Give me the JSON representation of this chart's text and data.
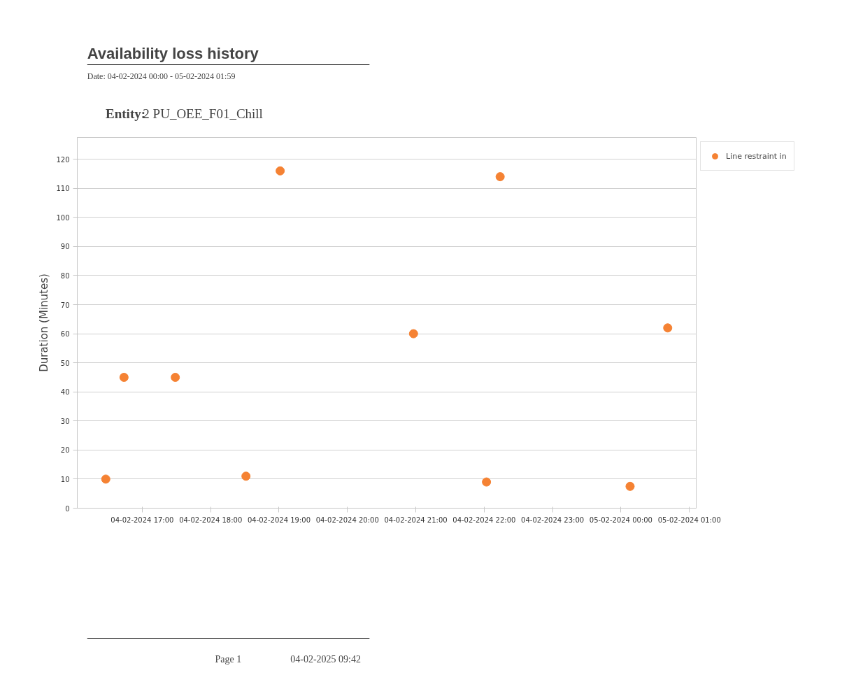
{
  "chart_data": {
    "type": "scatter",
    "title": "Availability loss history",
    "subtitle": "Date: 04-02-2024 00:00 - 05-02-2024 01:59",
    "ylabel": "Duration (Minutes)",
    "annotations": [
      "Entity:",
      "2  PU_OEE_F01_Chill",
      "Page 1",
      "04-02-2025 09:42"
    ],
    "series": [
      {
        "name": "Line restraint in",
        "color": "#f58233",
        "x": [
          "2024-02-04T16:28",
          "2024-02-04T16:44",
          "2024-02-04T17:29",
          "2024-02-04T18:31",
          "2024-02-04T19:01",
          "2024-02-04T20:58",
          "2024-02-04T22:02",
          "2024-02-04T22:14",
          "2024-02-05T00:08",
          "2024-02-05T00:41"
        ],
        "values": [
          10,
          45,
          45,
          11,
          116,
          60,
          9,
          114,
          7.5,
          62
        ]
      }
    ],
    "xlim": [
      "2024-02-04T16:03",
      "2024-02-05T01:06"
    ],
    "xticks": [
      {
        "value": "2024-02-04T17:00",
        "label": "04-02-2024 17:00"
      },
      {
        "value": "2024-02-04T18:00",
        "label": "04-02-2024 18:00"
      },
      {
        "value": "2024-02-04T19:00",
        "label": "04-02-2024 19:00"
      },
      {
        "value": "2024-02-04T20:00",
        "label": "04-02-2024 20:00"
      },
      {
        "value": "2024-02-04T21:00",
        "label": "04-02-2024 21:00"
      },
      {
        "value": "2024-02-04T22:00",
        "label": "04-02-2024 22:00"
      },
      {
        "value": "2024-02-04T23:00",
        "label": "04-02-2024 23:00"
      },
      {
        "value": "2024-02-05T00:00",
        "label": "05-02-2024 00:00"
      },
      {
        "value": "2024-02-05T01:00",
        "label": "05-02-2024 01:00"
      }
    ],
    "ylim": [
      0,
      127.5
    ],
    "yticks": [
      0,
      10,
      20,
      30,
      40,
      50,
      60,
      70,
      80,
      90,
      100,
      110,
      120
    ],
    "grid": "y",
    "legend": "top right",
    "marker": "circle"
  }
}
